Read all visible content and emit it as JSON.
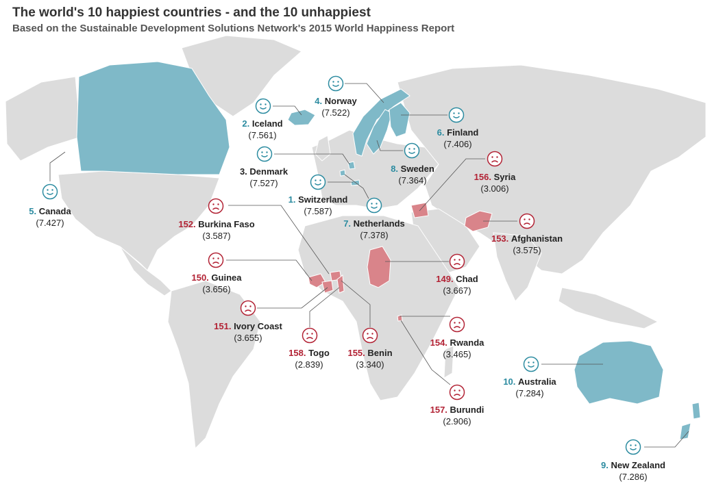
{
  "header": {
    "title": "The world's 10 happiest countries - and the 10 unhappiest",
    "subtitle": "Based on the Sustainable Development Solutions Network's 2015 World Happiness Report"
  },
  "colors": {
    "happy": "#2b8ba0",
    "sad": "#b22234",
    "happy_fill": "#7fb9c8",
    "sad_fill": "#d9848a",
    "land": "#dcdcdc"
  },
  "icons": {
    "happy": "smiley-face-icon",
    "sad": "sad-face-icon"
  },
  "countries": [
    {
      "id": "switzerland",
      "rank": "1.",
      "name": "Switzerland",
      "score": "(7.587)",
      "mood": "happy"
    },
    {
      "id": "iceland",
      "rank": "2.",
      "name": "Iceland",
      "score": "(7.561)",
      "mood": "happy"
    },
    {
      "id": "denmark",
      "rank": "3.",
      "name": "Denmark",
      "score": "(7.527)",
      "mood": "happy"
    },
    {
      "id": "norway",
      "rank": "4.",
      "name": "Norway",
      "score": "(7.522)",
      "mood": "happy"
    },
    {
      "id": "canada",
      "rank": "5.",
      "name": "Canada",
      "score": "(7.427)",
      "mood": "happy"
    },
    {
      "id": "finland",
      "rank": "6.",
      "name": "Finland",
      "score": "(7.406)",
      "mood": "happy"
    },
    {
      "id": "netherlands",
      "rank": "7.",
      "name": "Netherlands",
      "score": "(7.378)",
      "mood": "happy"
    },
    {
      "id": "sweden",
      "rank": "8.",
      "name": "Sweden",
      "score": "(7.364)",
      "mood": "happy"
    },
    {
      "id": "new-zealand",
      "rank": "9.",
      "name": "New Zealand",
      "score": "(7.286)",
      "mood": "happy"
    },
    {
      "id": "australia",
      "rank": "10.",
      "name": "Australia",
      "score": "(7.284)",
      "mood": "happy"
    },
    {
      "id": "chad",
      "rank": "149.",
      "name": "Chad",
      "score": "(3.667)",
      "mood": "sad"
    },
    {
      "id": "guinea",
      "rank": "150.",
      "name": "Guinea",
      "score": "(3.656)",
      "mood": "sad"
    },
    {
      "id": "ivory-coast",
      "rank": "151.",
      "name": "Ivory Coast",
      "score": "(3.655)",
      "mood": "sad"
    },
    {
      "id": "burkina-faso",
      "rank": "152.",
      "name": "Burkina Faso",
      "score": "(3.587)",
      "mood": "sad"
    },
    {
      "id": "afghanistan",
      "rank": "153.",
      "name": "Afghanistan",
      "score": "(3.575)",
      "mood": "sad"
    },
    {
      "id": "rwanda",
      "rank": "154.",
      "name": "Rwanda",
      "score": "(3.465)",
      "mood": "sad"
    },
    {
      "id": "benin",
      "rank": "155.",
      "name": "Benin",
      "score": "(3.340)",
      "mood": "sad"
    },
    {
      "id": "syria",
      "rank": "156.",
      "name": "Syria",
      "score": "(3.006)",
      "mood": "sad"
    },
    {
      "id": "burundi",
      "rank": "157.",
      "name": "Burundi",
      "score": "(2.906)",
      "mood": "sad"
    },
    {
      "id": "togo",
      "rank": "158.",
      "name": "Togo",
      "score": "(2.839)",
      "mood": "sad"
    }
  ]
}
